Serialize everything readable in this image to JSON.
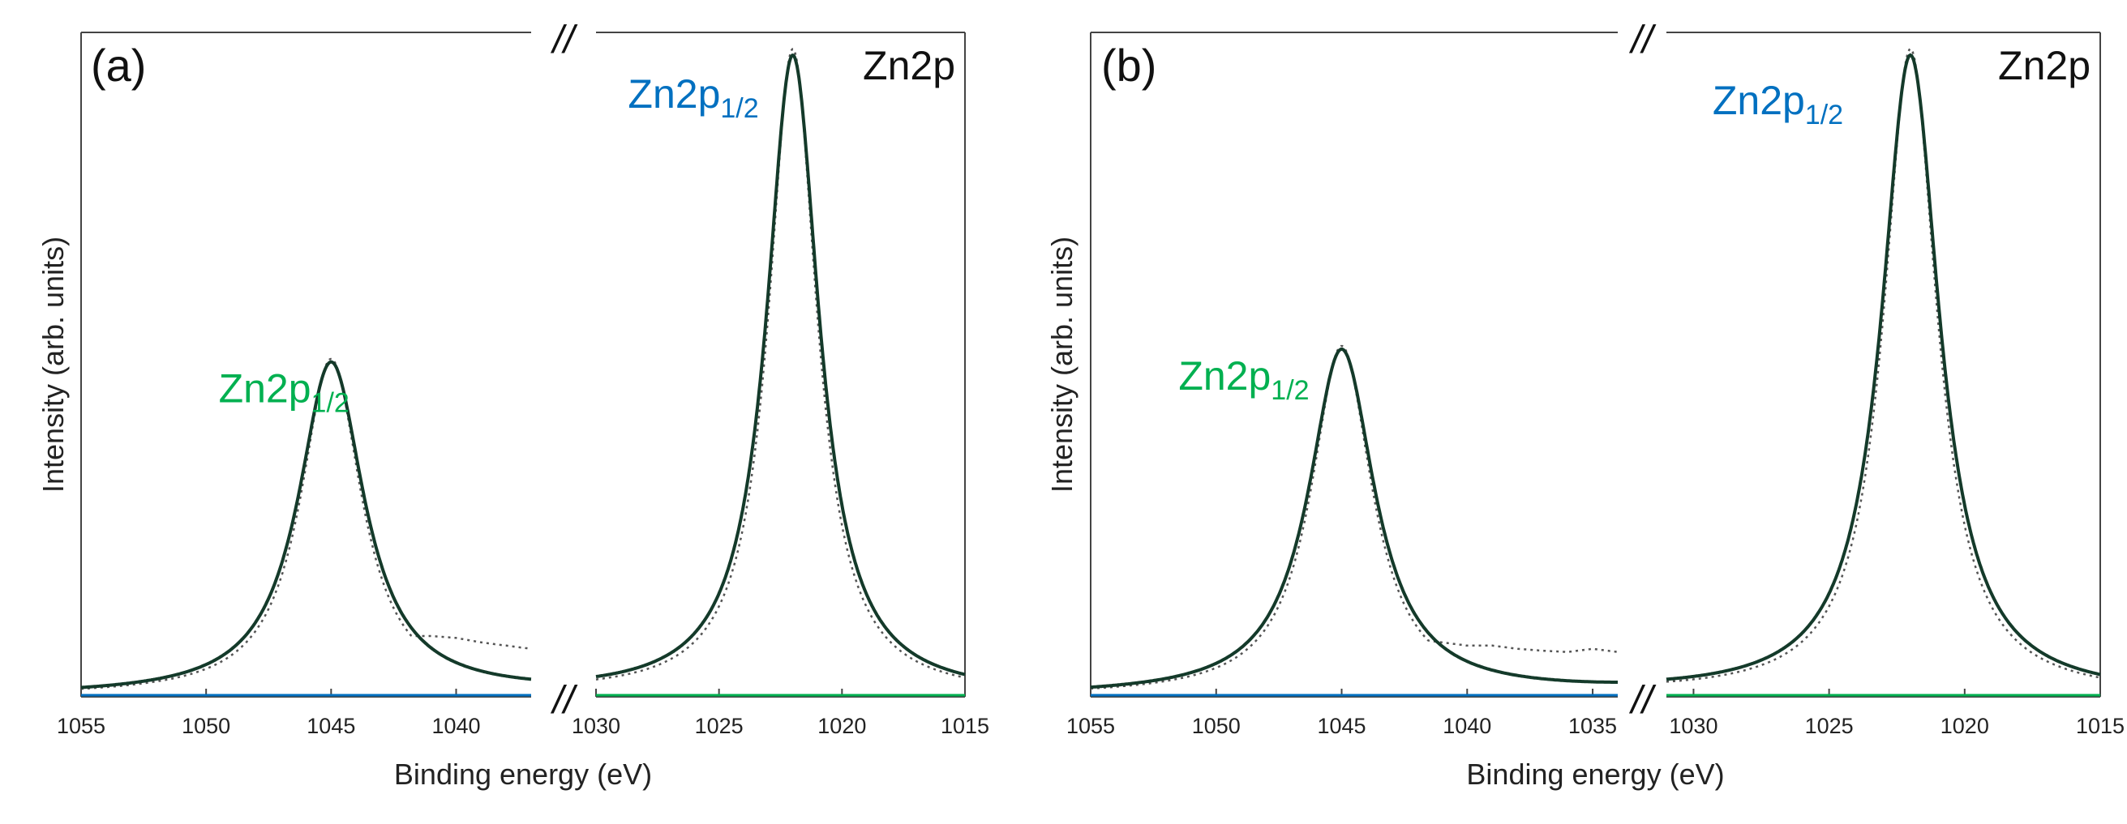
{
  "chart_data": [
    {
      "type": "line",
      "panel_label": "(a)",
      "element_label": "Zn2p",
      "xlabel": "Binding energy (eV)",
      "ylabel": "Intensity (arb. units)",
      "x_reversed": true,
      "axis_break": "//",
      "segments": [
        {
          "xlim": [
            1055,
            1037
          ],
          "ticks": [
            "1055",
            "1050",
            "1045",
            "1040"
          ],
          "tick_values": [
            1055,
            1050,
            1045,
            1040
          ]
        },
        {
          "xlim": [
            1030,
            1015
          ],
          "ticks": [
            "1030",
            "1025",
            "1020",
            "1015"
          ],
          "tick_values": [
            1030,
            1025,
            1020,
            1015
          ]
        }
      ],
      "ylim": [
        0,
        1.0
      ],
      "peaks": [
        {
          "name": "Zn2p",
          "subscript": "1/2",
          "center": 1045,
          "height": 0.52,
          "width": 1.6,
          "color": "#00b050",
          "label_x": 1049.5,
          "label_y": 0.46
        },
        {
          "name": "Zn2p",
          "subscript": "1/2",
          "center": 1022,
          "height": 1.0,
          "width": 1.3,
          "color": "#0070c0",
          "label_x": 1028.7,
          "label_y": 0.92
        }
      ],
      "experimental_bumps": [
        {
          "x": [
            1043,
            1042,
            1041,
            1040,
            1039,
            1038,
            1037
          ],
          "y": [
            0.1,
            0.095,
            0.095,
            0.092,
            0.085,
            0.08,
            0.075
          ]
        }
      ]
    },
    {
      "type": "line",
      "panel_label": "(b)",
      "element_label": "Zn2p",
      "xlabel": "Binding energy (eV)",
      "ylabel": "Intensity (arb. units)",
      "x_reversed": true,
      "axis_break": "//",
      "segments": [
        {
          "xlim": [
            1055,
            1034
          ],
          "ticks": [
            "1055",
            "1050",
            "1045",
            "1040",
            "1035"
          ],
          "tick_values": [
            1055,
            1050,
            1045,
            1040,
            1035
          ]
        },
        {
          "xlim": [
            1031,
            1015
          ],
          "ticks": [
            "1030",
            "1025",
            "1020",
            "1015"
          ],
          "tick_values": [
            1030,
            1025,
            1020,
            1015
          ]
        }
      ],
      "ylim": [
        0,
        1.0
      ],
      "peaks": [
        {
          "name": "Zn2p",
          "subscript": "1/2",
          "center": 1045,
          "height": 0.54,
          "width": 1.6,
          "color": "#00b050",
          "label_x": 1051.5,
          "label_y": 0.48
        },
        {
          "name": "Zn2p",
          "subscript": "1/2",
          "center": 1022,
          "height": 1.0,
          "width": 1.3,
          "color": "#0070c0",
          "label_x": 1029.3,
          "label_y": 0.91
        }
      ],
      "experimental_bumps": [
        {
          "x": [
            1042,
            1041,
            1040,
            1039,
            1038,
            1037,
            1036,
            1035,
            1034
          ],
          "y": [
            0.09,
            0.085,
            0.08,
            0.08,
            0.075,
            0.072,
            0.07,
            0.075,
            0.07
          ]
        }
      ]
    }
  ]
}
